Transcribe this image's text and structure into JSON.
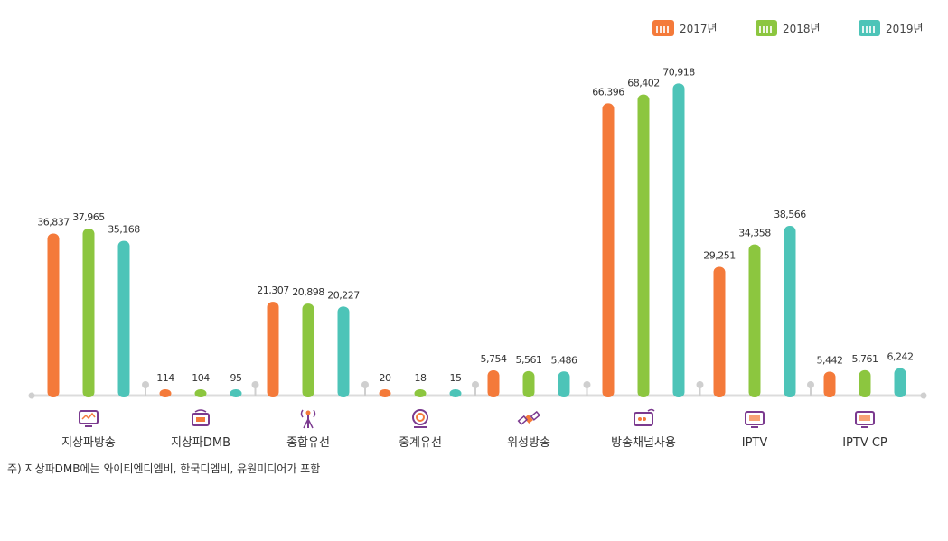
{
  "chart_data": {
    "type": "bar",
    "categories": [
      "지상파방송",
      "지상파DMB",
      "종합유선",
      "중계유선",
      "위성방송",
      "방송채널사용",
      "IPTV",
      "IPTV CP"
    ],
    "series": [
      {
        "name": "2017년",
        "color": "#f47a3a",
        "values": [
          36837,
          114,
          21307,
          20,
          5754,
          66396,
          29251,
          5442
        ],
        "labels": [
          "36,837",
          "114",
          "21,307",
          "20",
          "5,754",
          "66,396",
          "29,251",
          "5,442"
        ]
      },
      {
        "name": "2018년",
        "color": "#8cc63f",
        "values": [
          37965,
          104,
          20898,
          18,
          5561,
          68402,
          34358,
          5761
        ],
        "labels": [
          "37,965",
          "104",
          "20,898",
          "18",
          "5,561",
          "68,402",
          "34,358",
          "5,761"
        ]
      },
      {
        "name": "2019년",
        "color": "#4dc4b8",
        "values": [
          35168,
          95,
          20227,
          15,
          5486,
          70918,
          38566,
          6242
        ],
        "labels": [
          "35,168",
          "95",
          "20,227",
          "15",
          "5,486",
          "70,918",
          "38,566",
          "6,242"
        ]
      }
    ],
    "icons": [
      "tv-icon",
      "dmb-icon",
      "antenna-icon",
      "relay-icon",
      "satellite-icon",
      "channel-icon",
      "iptv-icon",
      "iptv-cp-icon"
    ],
    "ylim": [
      0,
      75000
    ],
    "legend_position": "top-right",
    "grid": false
  },
  "note": "주) 지상파DMB에는 와이티엔디엠비, 한국디엠비, 유원미디어가 포함"
}
